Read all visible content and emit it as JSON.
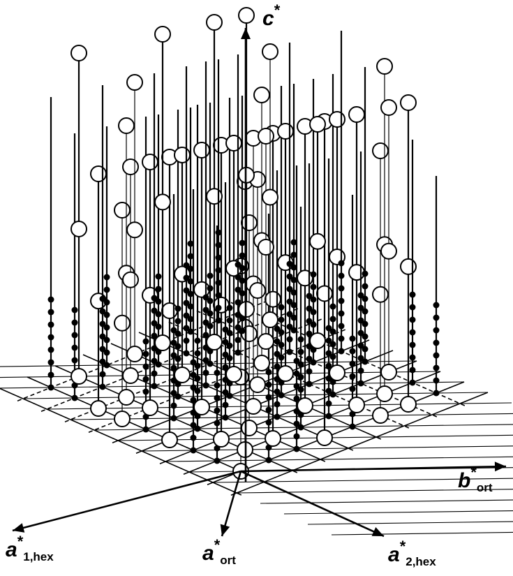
{
  "figure": {
    "axes": {
      "c_star": {
        "symbol": "c",
        "sup": "*",
        "sub": ""
      },
      "b_ort": {
        "symbol": "b",
        "sup": "*",
        "sub": "ort"
      },
      "a_ort": {
        "symbol": "a",
        "sup": "*",
        "sub": "ort"
      },
      "a1_hex": {
        "symbol": "a",
        "sup": "*",
        "sub": "1,hex"
      },
      "a2_hex": {
        "symbol": "a",
        "sup": "*",
        "sub": "2,hex"
      }
    },
    "colors": {
      "line": "#000000",
      "open_node_fill": "#ffffff",
      "filled_node": "#000000"
    }
  }
}
